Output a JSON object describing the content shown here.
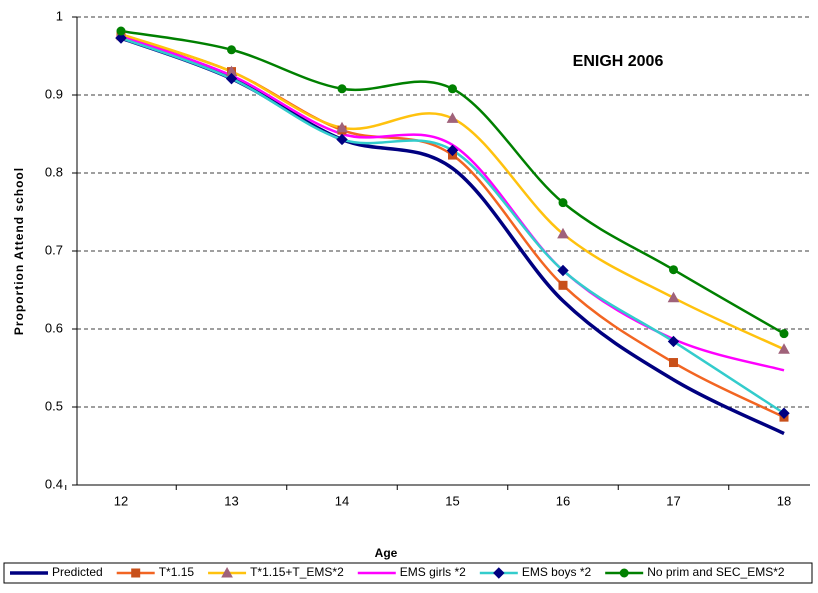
{
  "chart_data": {
    "type": "line",
    "annotation": "ENIGH 2006",
    "x_label": "Age",
    "y_label": "Proportion Attend school",
    "categories": [
      "12",
      "13",
      "14",
      "15",
      "16",
      "17",
      "18"
    ],
    "ylim": [
      0.4,
      1
    ],
    "yticks": [
      0.4,
      0.5,
      0.6,
      0.7,
      0.8,
      0.9,
      1
    ],
    "grid": true,
    "legend": "bottom",
    "series": [
      {
        "name": "Predicted",
        "color": "#000080",
        "marker": "none",
        "values": [
          0.973,
          0.921,
          0.843,
          0.806,
          0.636,
          0.535,
          0.466
        ]
      },
      {
        "name": "T*1.15",
        "color": "#F26522",
        "marker": "square",
        "marker_color": "#C8501A",
        "values": [
          0.976,
          0.93,
          0.855,
          0.823,
          0.656,
          0.557,
          0.487
        ]
      },
      {
        "name": "T*1.15+T_EMS*2",
        "color": "#FFC20E",
        "marker": "triangle",
        "marker_color": "#A0627A",
        "values": [
          0.978,
          0.93,
          0.858,
          0.87,
          0.722,
          0.64,
          0.574
        ]
      },
      {
        "name": "EMS girls *2",
        "color": "#FF00FF",
        "marker": "none",
        "values": [
          0.975,
          0.925,
          0.85,
          0.836,
          0.675,
          0.587,
          0.547
        ]
      },
      {
        "name": "EMS boys *2",
        "color": "#33CCCC",
        "marker": "diamond",
        "marker_color": "#000080",
        "values": [
          0.973,
          0.921,
          0.843,
          0.829,
          0.675,
          0.584,
          0.492
        ]
      },
      {
        "name": "No prim and SEC_EMS*2",
        "color": "#008000",
        "marker": "circle",
        "marker_color": "#008000",
        "values": [
          0.982,
          0.958,
          0.908,
          0.908,
          0.762,
          0.676,
          0.594
        ]
      }
    ]
  }
}
